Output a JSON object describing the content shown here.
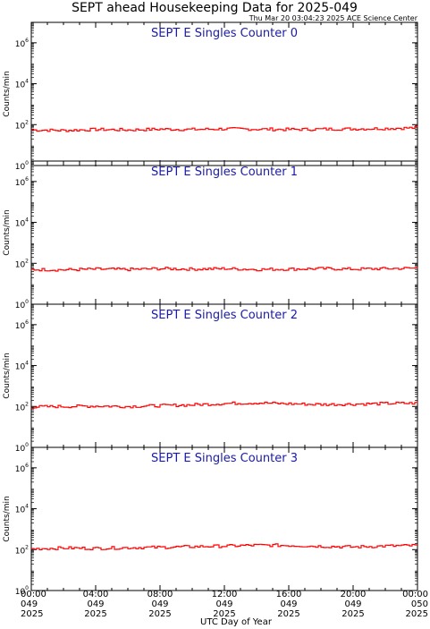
{
  "header": {
    "title": "SEPT ahead Housekeeping Data for 2025-049",
    "timestamp": "Thu Mar 20 03:04:23 2025 ACE Science Center"
  },
  "chart_data": [
    {
      "type": "line",
      "title": "SEPT E Singles Counter 0",
      "ylabel": "Counts/min",
      "yscale": "log",
      "ylim": [
        1,
        10000000
      ],
      "y_ticks": [
        "10^0",
        "10^2",
        "10^4",
        "10^6"
      ],
      "xlim": [
        0,
        24
      ],
      "color": "#ff0000",
      "x": [
        0,
        2,
        4,
        6,
        8,
        10,
        12,
        14,
        16,
        18,
        20,
        22,
        24
      ],
      "values": [
        55,
        52,
        58,
        55,
        60,
        58,
        62,
        60,
        58,
        60,
        62,
        65,
        70
      ]
    },
    {
      "type": "line",
      "title": "SEPT E Singles Counter 1",
      "ylabel": "Counts/min",
      "yscale": "log",
      "ylim": [
        1,
        10000000
      ],
      "y_ticks": [
        "10^0",
        "10^2",
        "10^4",
        "10^6"
      ],
      "xlim": [
        0,
        24
      ],
      "color": "#ff0000",
      "x": [
        0,
        2,
        4,
        6,
        8,
        10,
        12,
        14,
        16,
        18,
        20,
        22,
        24
      ],
      "values": [
        50,
        48,
        52,
        50,
        55,
        52,
        55,
        50,
        52,
        55,
        52,
        55,
        58
      ]
    },
    {
      "type": "line",
      "title": "SEPT E Singles Counter 2",
      "ylabel": "Counts/min",
      "yscale": "log",
      "ylim": [
        1,
        10000000
      ],
      "y_ticks": [
        "10^0",
        "10^2",
        "10^4",
        "10^6"
      ],
      "xlim": [
        0,
        24
      ],
      "color": "#ff0000",
      "x": [
        0,
        2,
        4,
        6,
        8,
        10,
        12,
        14,
        16,
        18,
        20,
        22,
        24
      ],
      "values": [
        95,
        100,
        105,
        100,
        110,
        120,
        140,
        150,
        135,
        125,
        130,
        140,
        145
      ]
    },
    {
      "type": "line",
      "title": "SEPT E Singles Counter 3",
      "ylabel": "Counts/min",
      "yscale": "log",
      "ylim": [
        1,
        10000000
      ],
      "y_ticks": [
        "10^0",
        "10^2",
        "10^4",
        "10^6"
      ],
      "xlim": [
        0,
        24
      ],
      "color": "#ff0000",
      "x": [
        0,
        2,
        4,
        6,
        8,
        10,
        12,
        14,
        16,
        18,
        20,
        22,
        24
      ],
      "values": [
        110,
        120,
        115,
        125,
        130,
        140,
        150,
        165,
        160,
        145,
        135,
        150,
        160
      ]
    }
  ],
  "x_axis": {
    "label": "UTC Day of Year",
    "ticks": [
      {
        "x": 0,
        "time": "00:00",
        "doy": "049",
        "year": "2025"
      },
      {
        "x": 4,
        "time": "04:00",
        "doy": "049",
        "year": "2025"
      },
      {
        "x": 8,
        "time": "08:00",
        "doy": "049",
        "year": "2025"
      },
      {
        "x": 12,
        "time": "12:00",
        "doy": "049",
        "year": "2025"
      },
      {
        "x": 16,
        "time": "16:00",
        "doy": "049",
        "year": "2025"
      },
      {
        "x": 20,
        "time": "20:00",
        "doy": "049",
        "year": "2025"
      },
      {
        "x": 24,
        "time": "00:00",
        "doy": "050",
        "year": "2025"
      }
    ]
  },
  "colors": {
    "data": "#ff0000",
    "title": "#1a1aa6",
    "axes": "#000000"
  }
}
